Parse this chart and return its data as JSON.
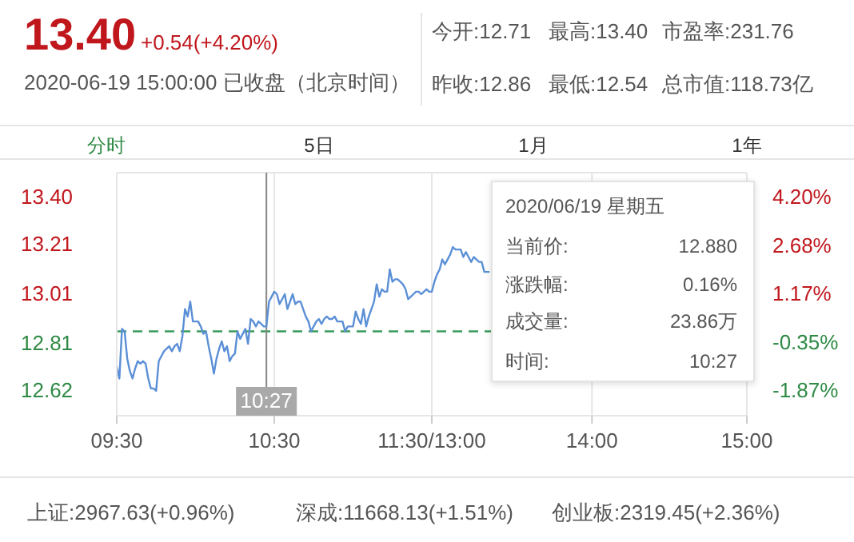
{
  "chart_data": {
    "type": "line",
    "title": "13.40",
    "subtitle": "+0.54(+4.20%)",
    "annotations": [
      "2020-06-19 15:00:00 已收盘（北京时间）",
      "今开:12.71",
      "最高:13.40",
      "市盈率:231.76",
      "昨收:12.86",
      "最低:12.54",
      "总市值:118.73亿",
      "分时",
      "5日",
      "1月",
      "1年",
      "2020/06/19 星期五",
      "当前价:",
      "12.880",
      "涨跌幅:",
      "0.16%",
      "成交量:",
      "23.86万",
      "时间:",
      "10:27",
      "上证:2967.63(+0.96%)",
      "深成:11668.13(+1.51%)",
      "创业板:2319.45(+2.36%)"
    ],
    "categories": [
      "09:30",
      null,
      null,
      null,
      null,
      null,
      null,
      null,
      null,
      null,
      null,
      null,
      null,
      null,
      null,
      null,
      null,
      null,
      null,
      null,
      null,
      null,
      null,
      null,
      null,
      null,
      null,
      null,
      null,
      null,
      null,
      null,
      null,
      null,
      null,
      null,
      null,
      null,
      null,
      null,
      null,
      null,
      null,
      null,
      null,
      null,
      null,
      null,
      null,
      null,
      null,
      null,
      null,
      null,
      null,
      null,
      null,
      "10:27",
      null,
      null,
      "10:30",
      null,
      null,
      null,
      null,
      null,
      null,
      null,
      null,
      null,
      null,
      null,
      null,
      null,
      null,
      null,
      null,
      null,
      null,
      null,
      null,
      null,
      null,
      null,
      null,
      null,
      null,
      null,
      null,
      null,
      null,
      null,
      null,
      null,
      null,
      null,
      null,
      null,
      null,
      null,
      null,
      null,
      null,
      null,
      null,
      null,
      null,
      null,
      null,
      null,
      null,
      null,
      null,
      null,
      null,
      null,
      null,
      null,
      null,
      null,
      "11:30/13:00",
      null,
      null,
      null,
      null,
      null,
      null,
      null,
      null,
      null,
      null,
      null,
      null,
      null,
      null,
      null,
      null,
      null,
      null,
      null,
      null,
      null,
      null,
      null,
      null,
      null,
      null,
      null,
      null,
      null,
      null,
      null,
      null,
      null,
      null,
      null,
      null,
      null,
      null,
      null,
      null,
      null,
      null,
      null,
      null,
      null,
      null,
      null,
      null,
      null,
      null,
      null,
      null,
      null,
      null,
      null,
      null,
      null,
      null,
      null,
      null,
      "14:00",
      null,
      null,
      null,
      null,
      null,
      null,
      null,
      null,
      null,
      null,
      null,
      null,
      null,
      null,
      null,
      null,
      null,
      null,
      null,
      null,
      null,
      null,
      null,
      null,
      null,
      null,
      null,
      null,
      null,
      null,
      null,
      null,
      null,
      null,
      null,
      null,
      null,
      null,
      null,
      null,
      null,
      null,
      null,
      null,
      null,
      null,
      null,
      null,
      null,
      null,
      null,
      null,
      null,
      null,
      null,
      null,
      null,
      null,
      "15:00"
    ],
    "series": [
      {
        "color": "#5b8fd6",
        "values": [
          12.72,
          12.67,
          12.87,
          12.86,
          12.75,
          12.7,
          12.67,
          12.71,
          12.74,
          12.73,
          12.74,
          12.73,
          12.67,
          12.63,
          12.63,
          12.62,
          12.74,
          12.76,
          12.78,
          12.79,
          12.8,
          12.78,
          12.8,
          12.81,
          12.78,
          12.84,
          12.95,
          12.92,
          12.98,
          12.9,
          12.9,
          12.9,
          12.88,
          12.85,
          12.86,
          12.8,
          12.75,
          12.69,
          12.75,
          12.79,
          12.82,
          12.78,
          12.8,
          12.74,
          12.76,
          12.77,
          12.86,
          12.83,
          12.85,
          12.87,
          12.81,
          12.91,
          12.9,
          12.88,
          12.9,
          12.89,
          12.88,
          12.88,
          12.98,
          13.0,
          13.02,
          13.01,
          12.97,
          12.99,
          13.01,
          12.95,
          12.98,
          13.01,
          12.97,
          12.98,
          12.98,
          12.95,
          12.92,
          12.9,
          12.86,
          12.88,
          12.9,
          12.91,
          12.89,
          12.91,
          12.92,
          12.91,
          12.91,
          12.92,
          12.9,
          12.9,
          12.9,
          12.86,
          12.88,
          12.88,
          12.88,
          12.94,
          12.91,
          12.89,
          12.95,
          12.88,
          12.92,
          12.95,
          12.98,
          13.05,
          13.0,
          13.03,
          13.02,
          13.02,
          13.11,
          13.06,
          13.07,
          13.07,
          13.06,
          13.05,
          13.03,
          12.99,
          13.0,
          13.01,
          13.02,
          13.02,
          13.01,
          13.02,
          13.03,
          13.02,
          13.02,
          13.06,
          13.09,
          13.11,
          13.15,
          13.13,
          13.15,
          13.17,
          13.2,
          13.19,
          13.19,
          13.19,
          13.16,
          13.18,
          13.16,
          13.14,
          13.16,
          13.15,
          13.14,
          13.14,
          13.1,
          13.1,
          13.1,
          null,
          null,
          null,
          null,
          null,
          null,
          null,
          null,
          null,
          null,
          null,
          null,
          null,
          null,
          null,
          null,
          null,
          null,
          null,
          null,
          null,
          null,
          null,
          null,
          null,
          null,
          null,
          null,
          null,
          null,
          null,
          null,
          null,
          null,
          null,
          null,
          null,
          null,
          null,
          null,
          null,
          null,
          null,
          null,
          null,
          null,
          null,
          null,
          null,
          null,
          null,
          null,
          null,
          null,
          null,
          null,
          null,
          null,
          null,
          null,
          null,
          null,
          null,
          null,
          null,
          null,
          null,
          null,
          null,
          null,
          null,
          null,
          null,
          null,
          null,
          null,
          null,
          null,
          null,
          null,
          null,
          null,
          null,
          null,
          null,
          null,
          null,
          null,
          null,
          null,
          null,
          null,
          null,
          null,
          null,
          null,
          null,
          null
        ]
      }
    ],
    "ylim": [
      12.52,
      13.5
    ],
    "yticks": [
      12.62,
      12.81,
      13.01,
      13.21,
      {
        "value": 13.4,
        "label": "13.40"
      }
    ],
    "y2lim": [
      -2.64,
      4.98
    ],
    "y2ticks": [
      {
        "value": -1.87,
        "label": "-1.87%"
      },
      {
        "value": -0.35,
        "label": "-0.35%"
      },
      {
        "value": 1.17,
        "label": "1.17%"
      },
      {
        "value": 2.68,
        "label": "2.68%"
      },
      {
        "value": 4.2,
        "label": "4.20%"
      }
    ],
    "ref_lines": [
      {
        "axis": "y",
        "value": 12.86,
        "color": "#3a9a5a",
        "line_style": "dashed"
      },
      {
        "axis": "x",
        "value": "10:27",
        "color": "#888888",
        "line_style": "solid"
      }
    ],
    "grid": true,
    "marker": "none",
    "line_style": "solid"
  }
}
